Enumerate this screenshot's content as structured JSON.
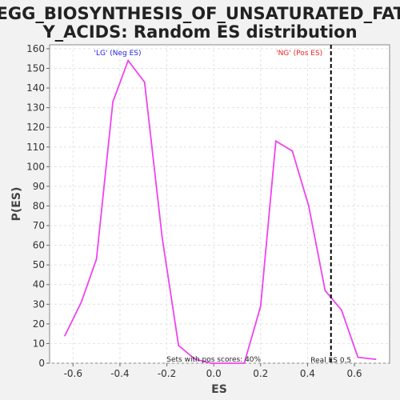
{
  "chart_data": {
    "type": "line",
    "title_line1": "KEGG_BIOSYNTHESIS_OF_UNSATURATED_FATT",
    "title_line2": "Y_ACIDS: Random ES distribution",
    "xlabel": "ES",
    "ylabel": "P(ES)",
    "xlim": [
      -0.7,
      0.75
    ],
    "ylim": [
      0,
      162
    ],
    "x_ticks": [
      -0.6,
      -0.4,
      -0.2,
      0.0,
      0.2,
      0.4,
      0.6
    ],
    "x_tick_labels": [
      "-0.6",
      "-0.4",
      "-0.2",
      "0.0",
      "0.2",
      "0.4",
      "0.6"
    ],
    "y_ticks": [
      0,
      10,
      20,
      30,
      40,
      50,
      60,
      70,
      80,
      90,
      100,
      110,
      120,
      130,
      140,
      150,
      160
    ],
    "y_tick_labels": [
      "0",
      "10",
      "20",
      "30",
      "40",
      "50",
      "60",
      "70",
      "80",
      "90",
      "100",
      "110",
      "120",
      "130",
      "140",
      "150",
      "160"
    ],
    "grid": true,
    "series": [
      {
        "color": "#ee44ee",
        "x": [
          -0.635,
          -0.565,
          -0.5,
          -0.43,
          -0.365,
          -0.295,
          -0.22,
          -0.15,
          -0.08,
          -0.01,
          0.06,
          0.13,
          0.2,
          0.265,
          0.335,
          0.405,
          0.475,
          0.545,
          0.615,
          0.69
        ],
        "y": [
          14,
          31,
          53,
          133,
          154,
          143,
          64,
          9,
          2,
          0,
          0,
          0,
          29,
          113,
          108,
          80,
          37,
          27,
          3,
          2
        ]
      }
    ],
    "real_es": 0.5,
    "real_es_label": "Real ES 0.5",
    "annotations": {
      "neg_label": "'LG' (Neg ES)",
      "neg_color": "#2222dd",
      "pos_label": "'NG' (Pos ES)",
      "pos_color": "#ee2222",
      "pos_scores_label": "Sets with pos scores: 40%"
    }
  }
}
